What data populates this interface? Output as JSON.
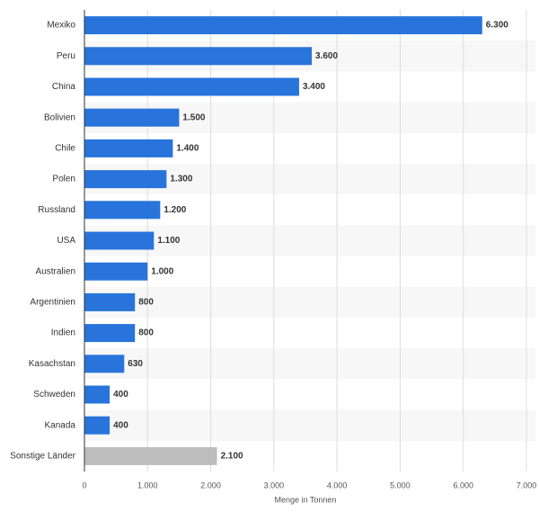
{
  "chart_data": {
    "type": "bar",
    "orientation": "horizontal",
    "categories": [
      "Mexiko",
      "Peru",
      "China",
      "Bolivien",
      "Chile",
      "Polen",
      "Russland",
      "USA",
      "Australien",
      "Argentinien",
      "Indien",
      "Kasachstan",
      "Schweden",
      "Kanada",
      "Sonstige Länder"
    ],
    "values": [
      6300,
      3600,
      3400,
      1500,
      1400,
      1300,
      1200,
      1100,
      1000,
      800,
      800,
      630,
      400,
      400,
      2100
    ],
    "value_labels": [
      "6.300",
      "3.600",
      "3.400",
      "1.500",
      "1.400",
      "1.300",
      "1.200",
      "1.100",
      "1.000",
      "800",
      "800",
      "630",
      "400",
      "400",
      "2.100"
    ],
    "colors": [
      "#2874db",
      "#2874db",
      "#2874db",
      "#2874db",
      "#2874db",
      "#2874db",
      "#2874db",
      "#2874db",
      "#2874db",
      "#2874db",
      "#2874db",
      "#2874db",
      "#2874db",
      "#2874db",
      "#bdbdbd"
    ],
    "xlabel": "Menge in Tonnen",
    "xlim": [
      0,
      7000
    ],
    "xticks": [
      0,
      {
        "value": 1000,
        "label": "1.000"
      },
      {
        "value": 2000,
        "label": "2.000"
      },
      {
        "value": 3000,
        "label": "3.000"
      },
      {
        "value": 4000,
        "label": "4.000"
      },
      {
        "value": 5000,
        "label": "5.000"
      },
      {
        "value": 6000,
        "label": "6.000"
      },
      {
        "value": 7000,
        "label": "7.000"
      }
    ],
    "grid": true
  }
}
